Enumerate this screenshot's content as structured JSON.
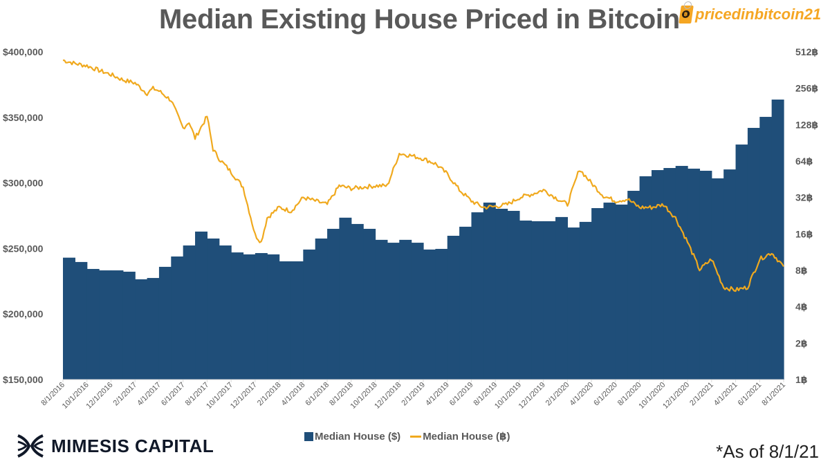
{
  "title": "Median Existing House Priced in Bitcoin",
  "logo": {
    "text": "pricedinbitcoin21",
    "icon": "bitcoin-tag-icon",
    "color": "#f5a623"
  },
  "brand": {
    "name": "MIMESIS CAPITAL",
    "icon": "mimesis-logo-icon"
  },
  "note": "*As of 8/1/21",
  "legend": [
    {
      "label": "Median House ($)",
      "color": "#1f4e79",
      "kind": "bar"
    },
    {
      "label": "Median House (฿)",
      "color": "#f0a91e",
      "kind": "line"
    }
  ],
  "chart_data": {
    "type": "bar+line",
    "title": "Median Existing House Priced in Bitcoin",
    "x_start": "8/1/2016",
    "x_end": "8/1/2021",
    "x_tick_labels": [
      "8/1/2016",
      "10/1/2016",
      "12/1/2016",
      "2/1/2017",
      "4/1/2017",
      "6/1/2017",
      "8/1/2017",
      "10/1/2017",
      "12/1/2017",
      "2/1/2018",
      "4/1/2018",
      "6/1/2018",
      "8/1/2018",
      "10/1/2018",
      "12/1/2018",
      "2/1/2019",
      "4/1/2019",
      "6/1/2019",
      "8/1/2019",
      "10/1/2019",
      "12/1/2019",
      "2/1/2020",
      "4/1/2020",
      "6/1/2020",
      "8/1/2020",
      "10/1/2020",
      "12/1/2020",
      "2/1/2021",
      "4/1/2021",
      "6/1/2021",
      "8/1/2021"
    ],
    "left_axis": {
      "label": "Median House ($)",
      "min": 150000,
      "max": 400000,
      "ticks": [
        "$150,000",
        "$200,000",
        "$250,000",
        "$300,000",
        "$350,000",
        "$400,000"
      ]
    },
    "right_axis": {
      "label": "Median House (฿)",
      "scale": "log2",
      "min": 1,
      "max": 512,
      "ticks": [
        "1฿",
        "2฿",
        "4฿",
        "8฿",
        "16฿",
        "32฿",
        "64฿",
        "128฿",
        "256฿",
        "512฿"
      ]
    },
    "series": [
      {
        "name": "Median House ($)",
        "type": "bar",
        "axis": "left",
        "color": "#1f4e79",
        "months": [
          "2016-08",
          "2016-09",
          "2016-10",
          "2016-11",
          "2016-12",
          "2017-01",
          "2017-02",
          "2017-03",
          "2017-04",
          "2017-05",
          "2017-06",
          "2017-07",
          "2017-08",
          "2017-09",
          "2017-10",
          "2017-11",
          "2017-12",
          "2018-01",
          "2018-02",
          "2018-03",
          "2018-04",
          "2018-05",
          "2018-06",
          "2018-07",
          "2018-08",
          "2018-09",
          "2018-10",
          "2018-11",
          "2018-12",
          "2019-01",
          "2019-02",
          "2019-03",
          "2019-04",
          "2019-05",
          "2019-06",
          "2019-07",
          "2019-08",
          "2019-09",
          "2019-10",
          "2019-11",
          "2019-12",
          "2020-01",
          "2020-02",
          "2020-03",
          "2020-04",
          "2020-05",
          "2020-06",
          "2020-07",
          "2020-08",
          "2020-09",
          "2020-10",
          "2020-11",
          "2020-12",
          "2021-01",
          "2021-02",
          "2021-03",
          "2021-04",
          "2021-05",
          "2021-06",
          "2021-07"
        ],
        "values": [
          243000,
          239700,
          234400,
          233300,
          233300,
          232300,
          226500,
          227500,
          236000,
          243900,
          252300,
          262900,
          257600,
          252300,
          247000,
          245500,
          246500,
          245500,
          240200,
          240200,
          249200,
          257600,
          265000,
          273500,
          268700,
          265000,
          256600,
          254400,
          256600,
          254400,
          249200,
          249700,
          259700,
          266600,
          277600,
          285000,
          280300,
          278700,
          271300,
          270800,
          270800,
          274000,
          266000,
          270300,
          280800,
          285000,
          283500,
          294000,
          305100,
          309800,
          311400,
          313000,
          310900,
          309300,
          303500,
          310300,
          329300,
          342000,
          350400,
          363600
        ]
      },
      {
        "name": "Median House (฿)",
        "type": "line",
        "axis": "right",
        "color": "#f0a91e",
        "x_months_from_start": [
          0,
          1,
          2,
          3,
          4,
          5,
          6,
          7,
          7.5,
          8,
          9,
          10,
          10.5,
          11,
          12,
          12.5,
          13,
          14,
          15,
          16,
          16.5,
          17,
          18,
          19,
          20,
          21,
          22,
          23,
          24,
          25,
          26,
          27,
          28,
          29,
          30,
          31,
          32,
          33,
          34,
          35,
          36,
          37,
          38,
          39,
          40,
          41,
          42,
          43,
          44,
          45,
          46,
          47,
          48,
          49,
          50,
          51,
          52,
          53,
          54,
          55,
          56,
          57,
          58,
          59,
          60
        ],
        "values": [
          437,
          410,
          393,
          360,
          332,
          300,
          283,
          232,
          255,
          243,
          204,
          120,
          135,
          99,
          150,
          80,
          67,
          52,
          39,
          15.7,
          13.7,
          21.7,
          26.5,
          24.7,
          32,
          30,
          28,
          40,
          38,
          39,
          40,
          40,
          74,
          71,
          67,
          61,
          50,
          37,
          30,
          26.5,
          27,
          28,
          32,
          34,
          37,
          32,
          28,
          55,
          42,
          33,
          30,
          31,
          26.5,
          26.5,
          28,
          21.7,
          13.7,
          8.1,
          9.9,
          5.8,
          5.5,
          5.8,
          9.9,
          11.2,
          8.6
        ]
      }
    ],
    "grid": false,
    "legend_position": "bottom-center"
  }
}
